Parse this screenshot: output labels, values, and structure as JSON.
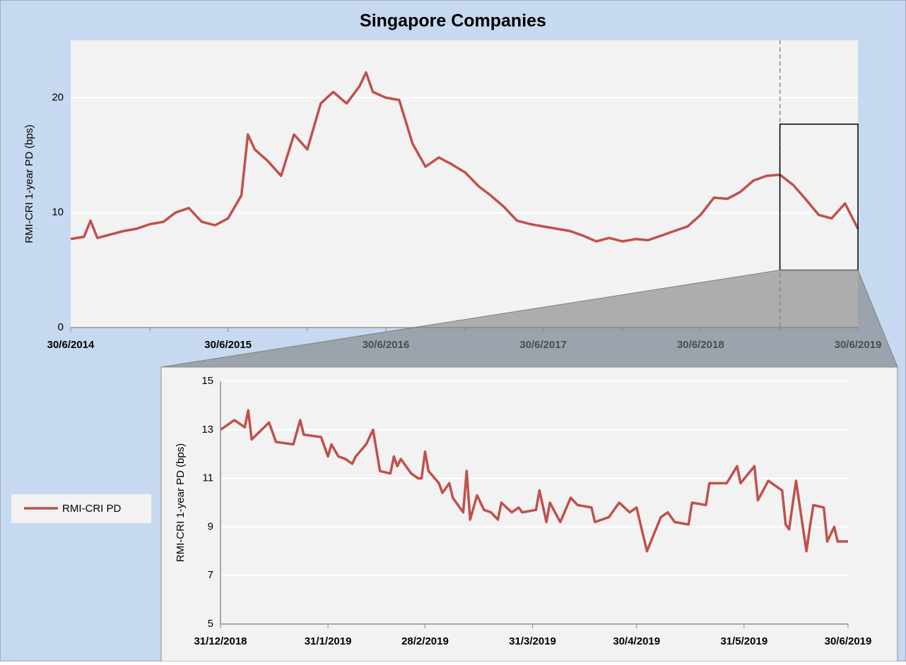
{
  "title": "Singapore Companies",
  "chart_data": [
    {
      "type": "line",
      "ylabel": "RMI-CRI 1-year PD (bps)",
      "xlim": [
        "30/6/2014",
        "30/6/2019"
      ],
      "xticks": [
        "30/6/2014",
        "30/6/2015",
        "30/6/2016",
        "30/6/2017",
        "30/6/2018",
        "30/6/2019"
      ],
      "xminorticks": [
        "31/12/2014",
        "31/12/2015",
        "31/12/2016",
        "31/12/2017",
        "31/12/2018"
      ],
      "ylim": [
        0,
        25
      ],
      "yticks": [
        0,
        10,
        20
      ],
      "grid": true,
      "legend": "left",
      "vline": "31/12/2018",
      "zoom_box": {
        "xlim": [
          "31/12/2018",
          "30/6/2019"
        ],
        "ylim": [
          5,
          17.7
        ]
      },
      "x": [
        "30/6/2014",
        "31/7/2014",
        "15/8/2014",
        "31/8/2014",
        "30/9/2014",
        "31/10/2014",
        "30/11/2014",
        "31/12/2014",
        "31/1/2015",
        "28/2/2015",
        "31/3/2015",
        "30/4/2015",
        "31/5/2015",
        "30/6/2015",
        "31/7/2015",
        "15/8/2015",
        "31/8/2015",
        "30/9/2015",
        "31/10/2015",
        "30/11/2015",
        "31/12/2015",
        "31/1/2016",
        "29/2/2016",
        "31/3/2016",
        "30/4/2016",
        "15/5/2016",
        "31/5/2016",
        "30/6/2016",
        "31/7/2016",
        "31/8/2016",
        "30/9/2016",
        "31/10/2016",
        "30/11/2016",
        "31/12/2016",
        "31/1/2017",
        "28/2/2017",
        "31/3/2017",
        "30/4/2017",
        "31/5/2017",
        "30/6/2017",
        "31/7/2017",
        "31/8/2017",
        "30/9/2017",
        "31/10/2017",
        "30/11/2017",
        "31/12/2017",
        "31/1/2018",
        "28/2/2018",
        "31/3/2018",
        "30/4/2018",
        "31/5/2018",
        "30/6/2018",
        "31/7/2018",
        "31/8/2018",
        "30/9/2018",
        "31/10/2018",
        "30/11/2018",
        "31/12/2018",
        "31/1/2019",
        "28/2/2019",
        "31/3/2019",
        "30/4/2019",
        "31/5/2019",
        "30/6/2019"
      ],
      "series": [
        {
          "name": "RMI-CRI PD",
          "color": "#c0504d",
          "values": [
            7.7,
            7.9,
            9.3,
            7.8,
            8.1,
            8.4,
            8.6,
            9.0,
            9.2,
            10.0,
            10.4,
            9.2,
            8.9,
            9.5,
            11.5,
            16.8,
            15.5,
            14.5,
            13.2,
            16.8,
            15.5,
            19.5,
            20.5,
            19.5,
            21.0,
            22.2,
            20.5,
            20.0,
            19.8,
            16.0,
            14.0,
            14.8,
            14.2,
            13.5,
            12.3,
            11.5,
            10.5,
            9.3,
            9.0,
            8.8,
            8.6,
            8.4,
            8.0,
            7.5,
            7.8,
            7.5,
            7.7,
            7.6,
            8.0,
            8.4,
            8.8,
            9.8,
            11.3,
            11.2,
            11.8,
            12.8,
            13.2,
            13.3,
            12.4,
            11.2,
            9.8,
            9.5,
            10.8,
            8.6
          ]
        }
      ]
    },
    {
      "type": "line",
      "ylabel": "RMI-CRI 1-year PD (bps)",
      "xlim": [
        "31/12/2018",
        "30/6/2019"
      ],
      "xticks": [
        "31/12/2018",
        "31/1/2019",
        "28/2/2019",
        "31/3/2019",
        "30/4/2019",
        "31/5/2019",
        "30/6/2019"
      ],
      "ylim": [
        5,
        15
      ],
      "yticks": [
        5,
        7,
        9,
        11,
        13,
        15
      ],
      "grid": true,
      "x": [
        "31/12/2018",
        "4/1/2019",
        "7/1/2019",
        "8/1/2019",
        "9/1/2019",
        "14/1/2019",
        "16/1/2019",
        "21/1/2019",
        "23/1/2019",
        "24/1/2019",
        "29/1/2019",
        "31/1/2019",
        "1/2/2019",
        "3/2/2019",
        "5/2/2019",
        "7/2/2019",
        "8/2/2019",
        "11/2/2019",
        "13/2/2019",
        "15/2/2019",
        "18/2/2019",
        "19/2/2019",
        "20/2/2019",
        "21/2/2019",
        "24/2/2019",
        "26/2/2019",
        "27/2/2019",
        "28/2/2019",
        "1/3/2019",
        "4/3/2019",
        "5/3/2019",
        "7/3/2019",
        "8/3/2019",
        "11/3/2019",
        "12/3/2019",
        "13/3/2019",
        "15/3/2019",
        "17/3/2019",
        "19/3/2019",
        "21/3/2019",
        "22/3/2019",
        "25/3/2019",
        "27/3/2019",
        "28/3/2019",
        "1/4/2019",
        "2/4/2019",
        "4/4/2019",
        "5/4/2019",
        "8/4/2019",
        "11/4/2019",
        "13/4/2019",
        "17/4/2019",
        "18/4/2019",
        "22/4/2019",
        "25/4/2019",
        "28/4/2019",
        "30/4/2019",
        "3/5/2019",
        "7/5/2019",
        "9/5/2019",
        "11/5/2019",
        "15/5/2019",
        "16/5/2019",
        "20/5/2019",
        "21/5/2019",
        "23/5/2019",
        "26/5/2019",
        "29/5/2019",
        "30/5/2019",
        "3/6/2019",
        "4/6/2019",
        "7/6/2019",
        "11/6/2019",
        "12/6/2019",
        "13/6/2019",
        "15/6/2019",
        "18/6/2019",
        "19/6/2019",
        "20/6/2019",
        "23/6/2019",
        "24/6/2019",
        "26/6/2019",
        "27/6/2019",
        "30/6/2019"
      ],
      "series": [
        {
          "color": "#c0504d",
          "values": [
            13.0,
            13.4,
            13.1,
            13.8,
            12.6,
            13.3,
            12.5,
            12.4,
            13.4,
            12.8,
            12.7,
            11.9,
            12.4,
            11.9,
            11.8,
            11.6,
            11.9,
            12.4,
            13.0,
            11.3,
            11.2,
            11.9,
            11.5,
            11.8,
            11.2,
            11.0,
            11.0,
            12.1,
            11.3,
            10.8,
            10.4,
            10.8,
            10.2,
            9.6,
            11.3,
            9.3,
            10.3,
            9.7,
            9.6,
            9.3,
            10.0,
            9.6,
            9.8,
            9.6,
            9.7,
            10.5,
            9.2,
            10.0,
            9.2,
            10.2,
            9.9,
            9.8,
            9.2,
            9.4,
            10.0,
            9.6,
            9.8,
            8.0,
            9.4,
            9.6,
            9.2,
            9.1,
            10.0,
            9.9,
            10.8,
            10.8,
            10.8,
            11.5,
            10.8,
            11.5,
            10.1,
            10.9,
            10.5,
            9.1,
            8.9,
            10.9,
            8.0,
            9.0,
            9.9,
            9.8,
            8.4,
            9.0,
            8.4,
            8.4
          ]
        }
      ]
    }
  ]
}
